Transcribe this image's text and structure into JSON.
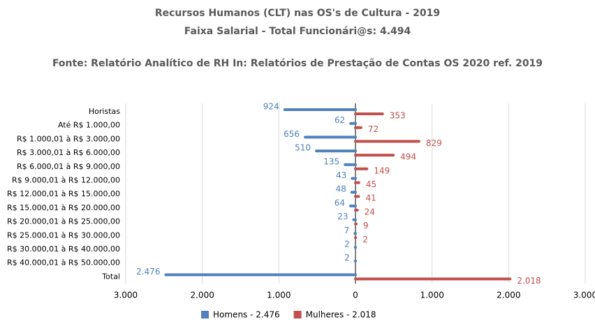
{
  "chart_data": {
    "type": "diverging_bar",
    "title": "Recursos Humanos (CLT) nas OS's de Cultura - 2019",
    "subtitle": "Faixa Salarial - Total Funcionári@s: 4.494",
    "source": "Fonte: Relatório Analítico de RH In: Relatórios de Prestação de Contas OS 2020 ref. 2019",
    "categories": [
      "Horistas",
      "Até R$ 1.000,00",
      "R$ 1.000,01 à R$ 3.000,00",
      "R$ 3.000,01 à R$ 6.000,00",
      "R$ 6.000,01 à R$ 9.000,00",
      "R$ 9.000,01 à R$ 12.000,00",
      "R$ 12.000,01 à R$ 15.000,00",
      "R$ 15.000,01 à R$ 20.000,00",
      "R$ 20.000,01 à R$ 25.000,00",
      "R$ 25.000,01 à R$ 30.000,00",
      "R$ 30.000,01 à R$ 40.000,00",
      "R$ 40.000,01 à R$ 50.000,00",
      "Total"
    ],
    "series": [
      {
        "name": "Homens - 2.476",
        "color": "#4f81bd",
        "side": "left",
        "values": [
          924,
          62,
          656,
          510,
          135,
          43,
          48,
          64,
          23,
          7,
          2,
          2,
          2476
        ],
        "value_labels": [
          "924",
          "62",
          "656",
          "510",
          "135",
          "43",
          "48",
          "64",
          "23",
          "7",
          "2",
          "2",
          "2.476"
        ]
      },
      {
        "name": "Mulheres - 2.018",
        "color": "#c0504d",
        "side": "right",
        "values": [
          353,
          72,
          829,
          494,
          149,
          45,
          41,
          24,
          9,
          2,
          null,
          null,
          2018
        ],
        "value_labels": [
          "353",
          "72",
          "829",
          "494",
          "149",
          "45",
          "41",
          "24",
          "9",
          "2",
          null,
          null,
          "2.018"
        ]
      }
    ],
    "xlim": [
      -3000,
      3000
    ],
    "xticks": [
      {
        "value": -3000,
        "label": "3.000"
      },
      {
        "value": -2000,
        "label": "2.000"
      },
      {
        "value": -1000,
        "label": "1.000"
      },
      0,
      {
        "value": 1000,
        "label": "1.000"
      },
      {
        "value": 2000,
        "label": "2.000"
      },
      {
        "value": 3000,
        "label": "3.000"
      }
    ],
    "grid": true,
    "legend": "bottom"
  }
}
